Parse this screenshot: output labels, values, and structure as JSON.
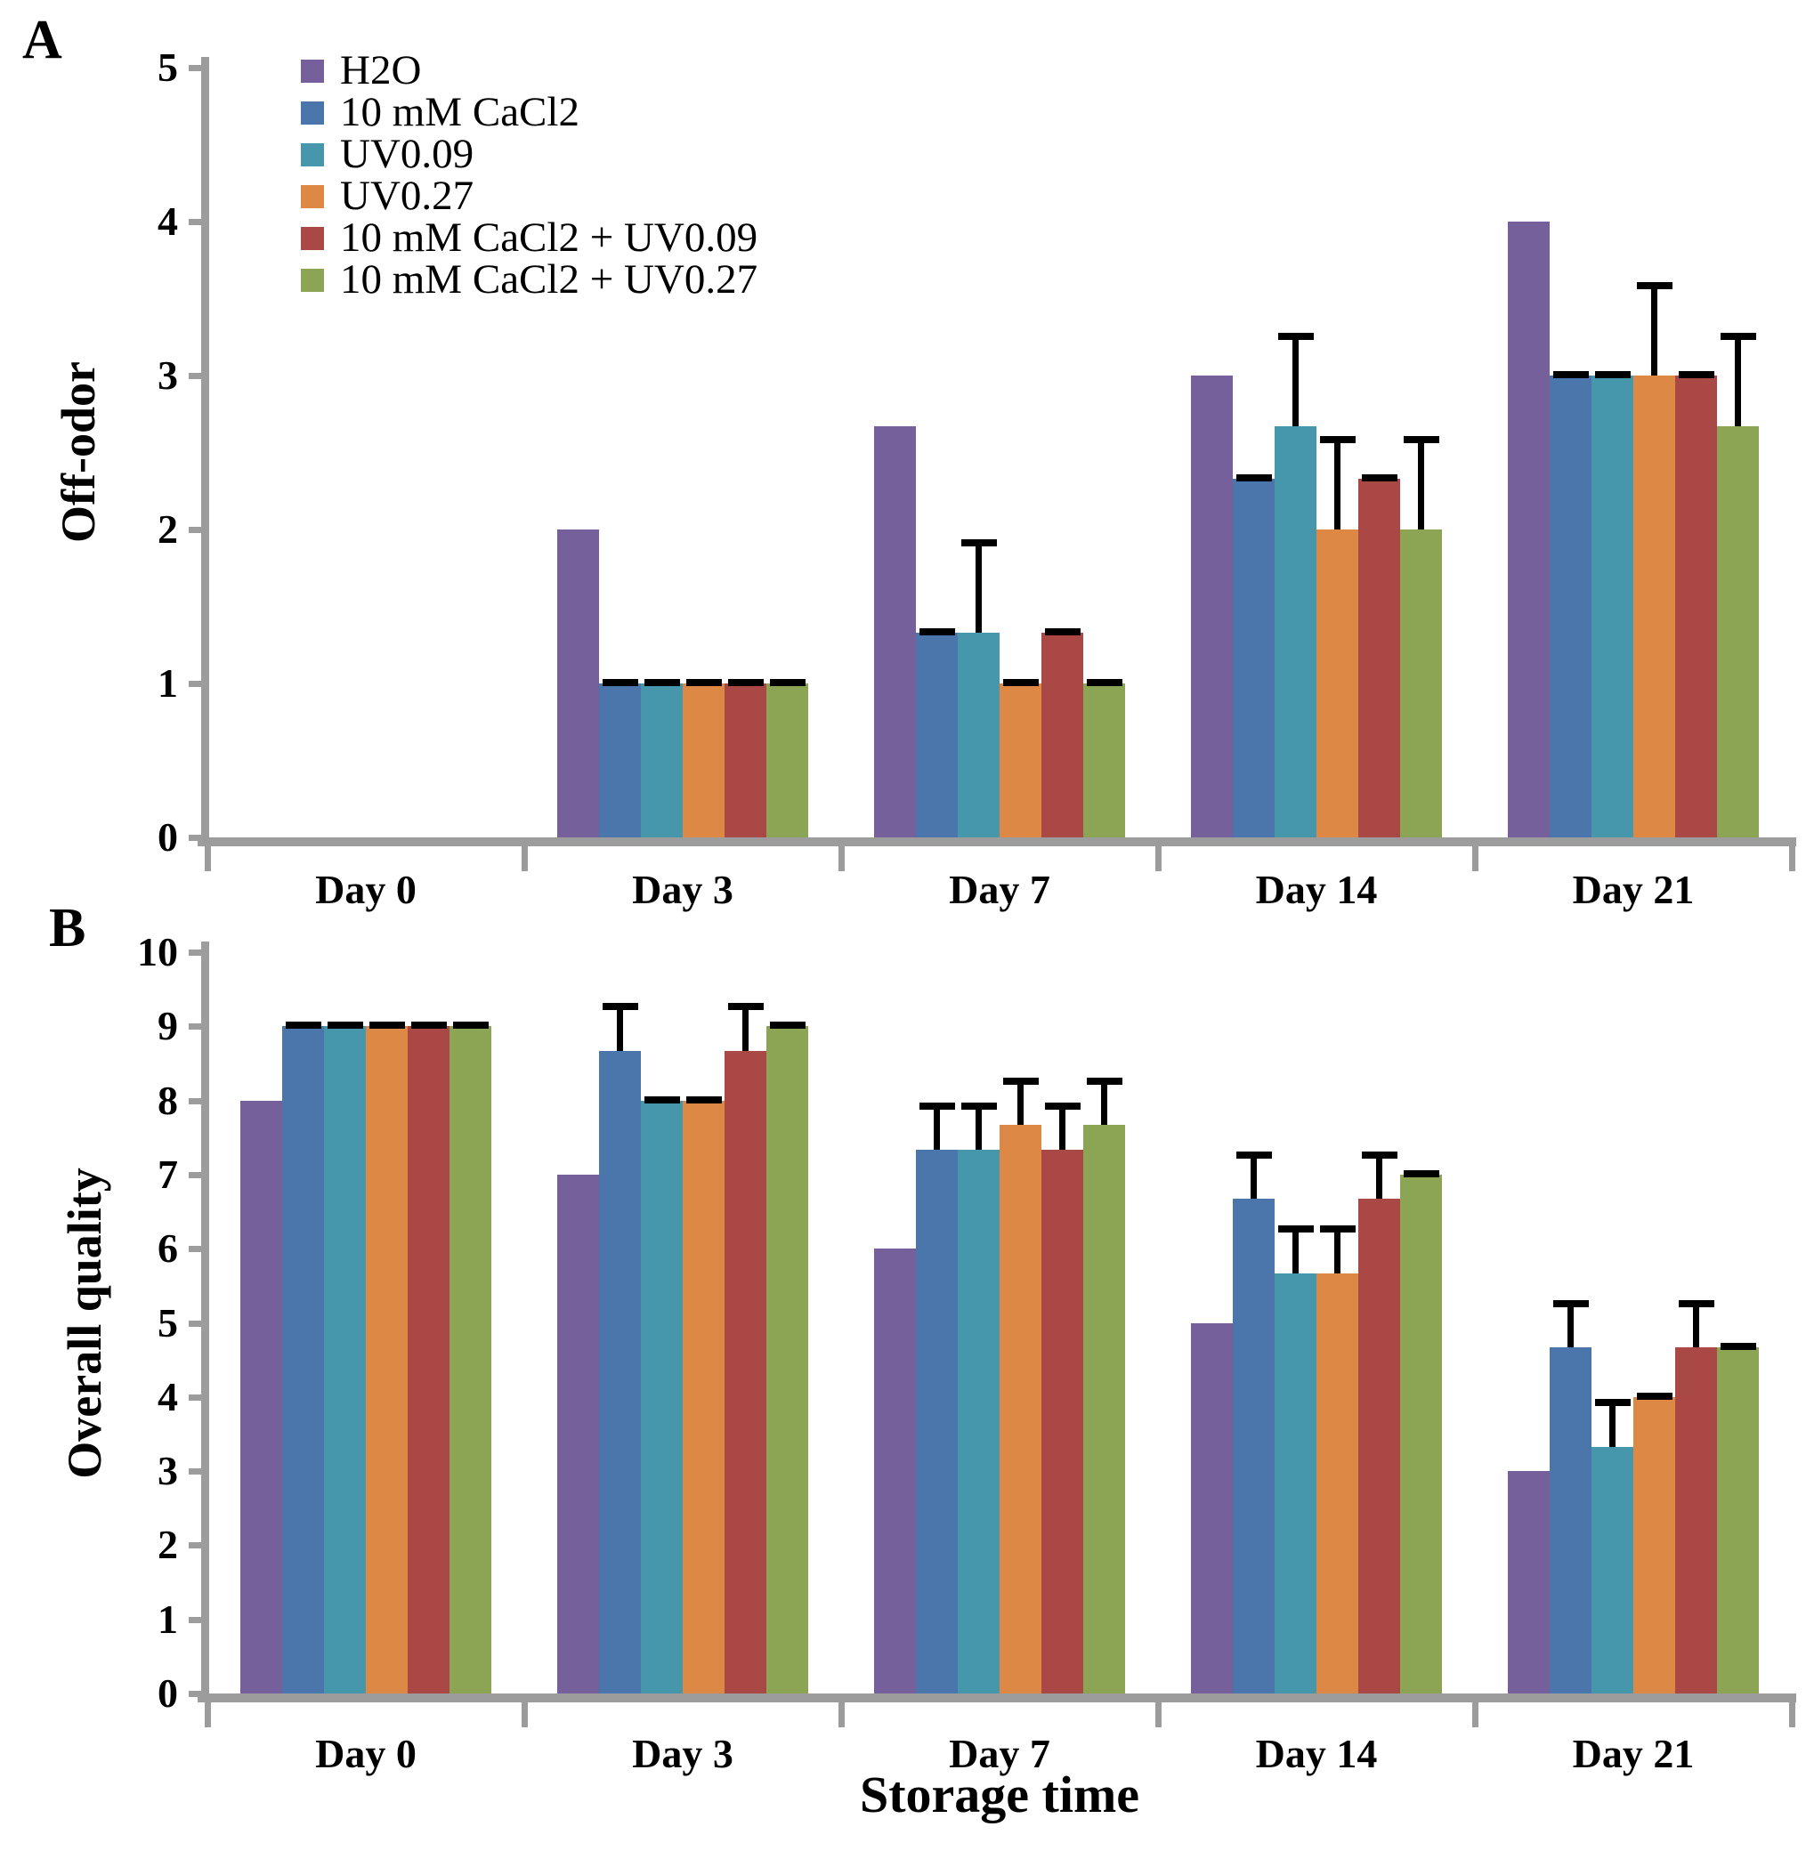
{
  "figure": {
    "panel_labels": [
      "A",
      "B"
    ],
    "xlabel": "Storage time",
    "background": "#ffffff",
    "axis_color": "#9c9c9c",
    "error_bar_color": "#000000"
  },
  "legend": {
    "position": "top-left",
    "items": [
      {
        "label": "H2O",
        "color": "#75609B"
      },
      {
        "label": "10 mM CaCl2",
        "color": "#4A76AC"
      },
      {
        "label": "UV0.09",
        "color": "#4697AB"
      },
      {
        "label": "UV0.27",
        "color": "#DE8845"
      },
      {
        "label": "10 mM CaCl2 + UV0.09",
        "color": "#A94845"
      },
      {
        "label": "10 mM CaCl2 + UV0.27",
        "color": "#8BA554"
      }
    ]
  },
  "chart_data": [
    {
      "type": "bar",
      "panel": "A",
      "title": "",
      "ylabel": "Off-odor",
      "xlabel": "",
      "ylim": [
        0,
        5
      ],
      "yticks": [
        "0",
        "1",
        "2",
        "3",
        "4",
        "5"
      ],
      "categories": [
        "Day 0",
        "Day 3",
        "Day 7",
        "Day 14",
        "Day 21"
      ],
      "grid": false,
      "legend_position": "top-left",
      "series": [
        {
          "name": "H2O",
          "color": "#75609B",
          "values": [
            0,
            2,
            2.67,
            3,
            4
          ],
          "errors_upper": [
            null,
            null,
            null,
            null,
            null
          ]
        },
        {
          "name": "10 mM CaCl2",
          "color": "#4A76AC",
          "values": [
            0,
            1,
            1.33,
            2.33,
            3
          ],
          "errors_upper": [
            null,
            0,
            0,
            0,
            0
          ]
        },
        {
          "name": "UV0.09",
          "color": "#4697AB",
          "values": [
            0,
            1,
            1.33,
            2.67,
            3
          ],
          "errors_upper": [
            null,
            0,
            0.58,
            0.58,
            0
          ]
        },
        {
          "name": "UV0.27",
          "color": "#DE8845",
          "values": [
            0,
            1,
            1,
            2,
            3
          ],
          "errors_upper": [
            null,
            0,
            0,
            0.58,
            0.58
          ]
        },
        {
          "name": "10 mM CaCl2 + UV0.09",
          "color": "#A94845",
          "values": [
            0,
            1,
            1.33,
            2.33,
            3
          ],
          "errors_upper": [
            null,
            0,
            0,
            0,
            0
          ]
        },
        {
          "name": "10 mM CaCl2 + UV0.27",
          "color": "#8BA554",
          "values": [
            0,
            1,
            1,
            2,
            2.67
          ],
          "errors_upper": [
            null,
            0,
            0,
            0.58,
            0.58
          ]
        }
      ]
    },
    {
      "type": "bar",
      "panel": "B",
      "title": "",
      "ylabel": "Overall quality",
      "xlabel": "Storage time",
      "ylim": [
        0,
        10
      ],
      "yticks": [
        "0",
        "1",
        "2",
        "3",
        "4",
        "5",
        "6",
        "7",
        "8",
        "9",
        "10"
      ],
      "categories": [
        "Day 0",
        "Day 3",
        "Day 7",
        "Day 14",
        "Day 21"
      ],
      "grid": false,
      "legend_position": "none",
      "series": [
        {
          "name": "H2O",
          "color": "#75609B",
          "values": [
            8,
            7,
            6,
            5,
            3
          ],
          "errors_upper": [
            null,
            null,
            null,
            null,
            null
          ]
        },
        {
          "name": "10 mM CaCl2",
          "color": "#4A76AC",
          "values": [
            9,
            8.67,
            7.33,
            6.67,
            4.67
          ],
          "errors_upper": [
            0,
            0.58,
            0.58,
            0.58,
            0.58
          ]
        },
        {
          "name": "UV0.09",
          "color": "#4697AB",
          "values": [
            9,
            8,
            7.33,
            5.67,
            3.33
          ],
          "errors_upper": [
            0,
            0,
            0.58,
            0.58,
            0.58
          ]
        },
        {
          "name": "UV0.27",
          "color": "#DE8845",
          "values": [
            9,
            8,
            7.67,
            5.67,
            4
          ],
          "errors_upper": [
            0,
            0,
            0.58,
            0.58,
            0
          ]
        },
        {
          "name": "10 mM CaCl2 + UV0.09",
          "color": "#A94845",
          "values": [
            9,
            8.67,
            7.33,
            6.67,
            4.67
          ],
          "errors_upper": [
            0,
            0.58,
            0.58,
            0.58,
            0.58
          ]
        },
        {
          "name": "10 mM CaCl2 + UV0.27",
          "color": "#8BA554",
          "values": [
            9,
            9,
            7.67,
            7,
            4.67
          ],
          "errors_upper": [
            0,
            0,
            0.58,
            0,
            0
          ]
        }
      ]
    }
  ]
}
